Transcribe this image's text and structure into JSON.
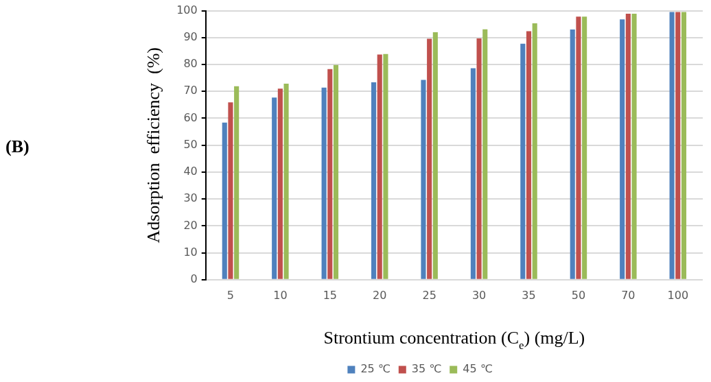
{
  "chart_data": {
    "type": "bar",
    "xlabel": "Strontium concentration (C$_{e}$) (mg/L)",
    "ylabel": "Adsorption  efficiency  (%)",
    "annotations": [
      "(B)"
    ],
    "categories": [
      "5",
      "10",
      "15",
      "20",
      "25",
      "30",
      "35",
      "50",
      "70",
      "100"
    ],
    "series": [
      {
        "name": "25 ℃",
        "color": "#4f81bd",
        "values": [
          58.4,
          67.7,
          71.4,
          73.4,
          74.3,
          78.6,
          87.7,
          93.0,
          96.8,
          99.5
        ]
      },
      {
        "name": "35 ℃",
        "color": "#c0504d",
        "values": [
          65.9,
          71.0,
          78.3,
          83.7,
          89.6,
          89.7,
          92.4,
          97.8,
          98.9,
          99.5
        ]
      },
      {
        "name": "45 ℃",
        "color": "#9bbb59",
        "values": [
          71.9,
          72.9,
          79.8,
          83.9,
          92.0,
          93.1,
          95.3,
          97.8,
          98.9,
          99.5
        ]
      }
    ],
    "ylim": [
      0,
      100
    ],
    "yticks": [
      0,
      10,
      20,
      30,
      40,
      50,
      60,
      70,
      80,
      90,
      100
    ],
    "grid": "y",
    "legend": "bottom"
  }
}
